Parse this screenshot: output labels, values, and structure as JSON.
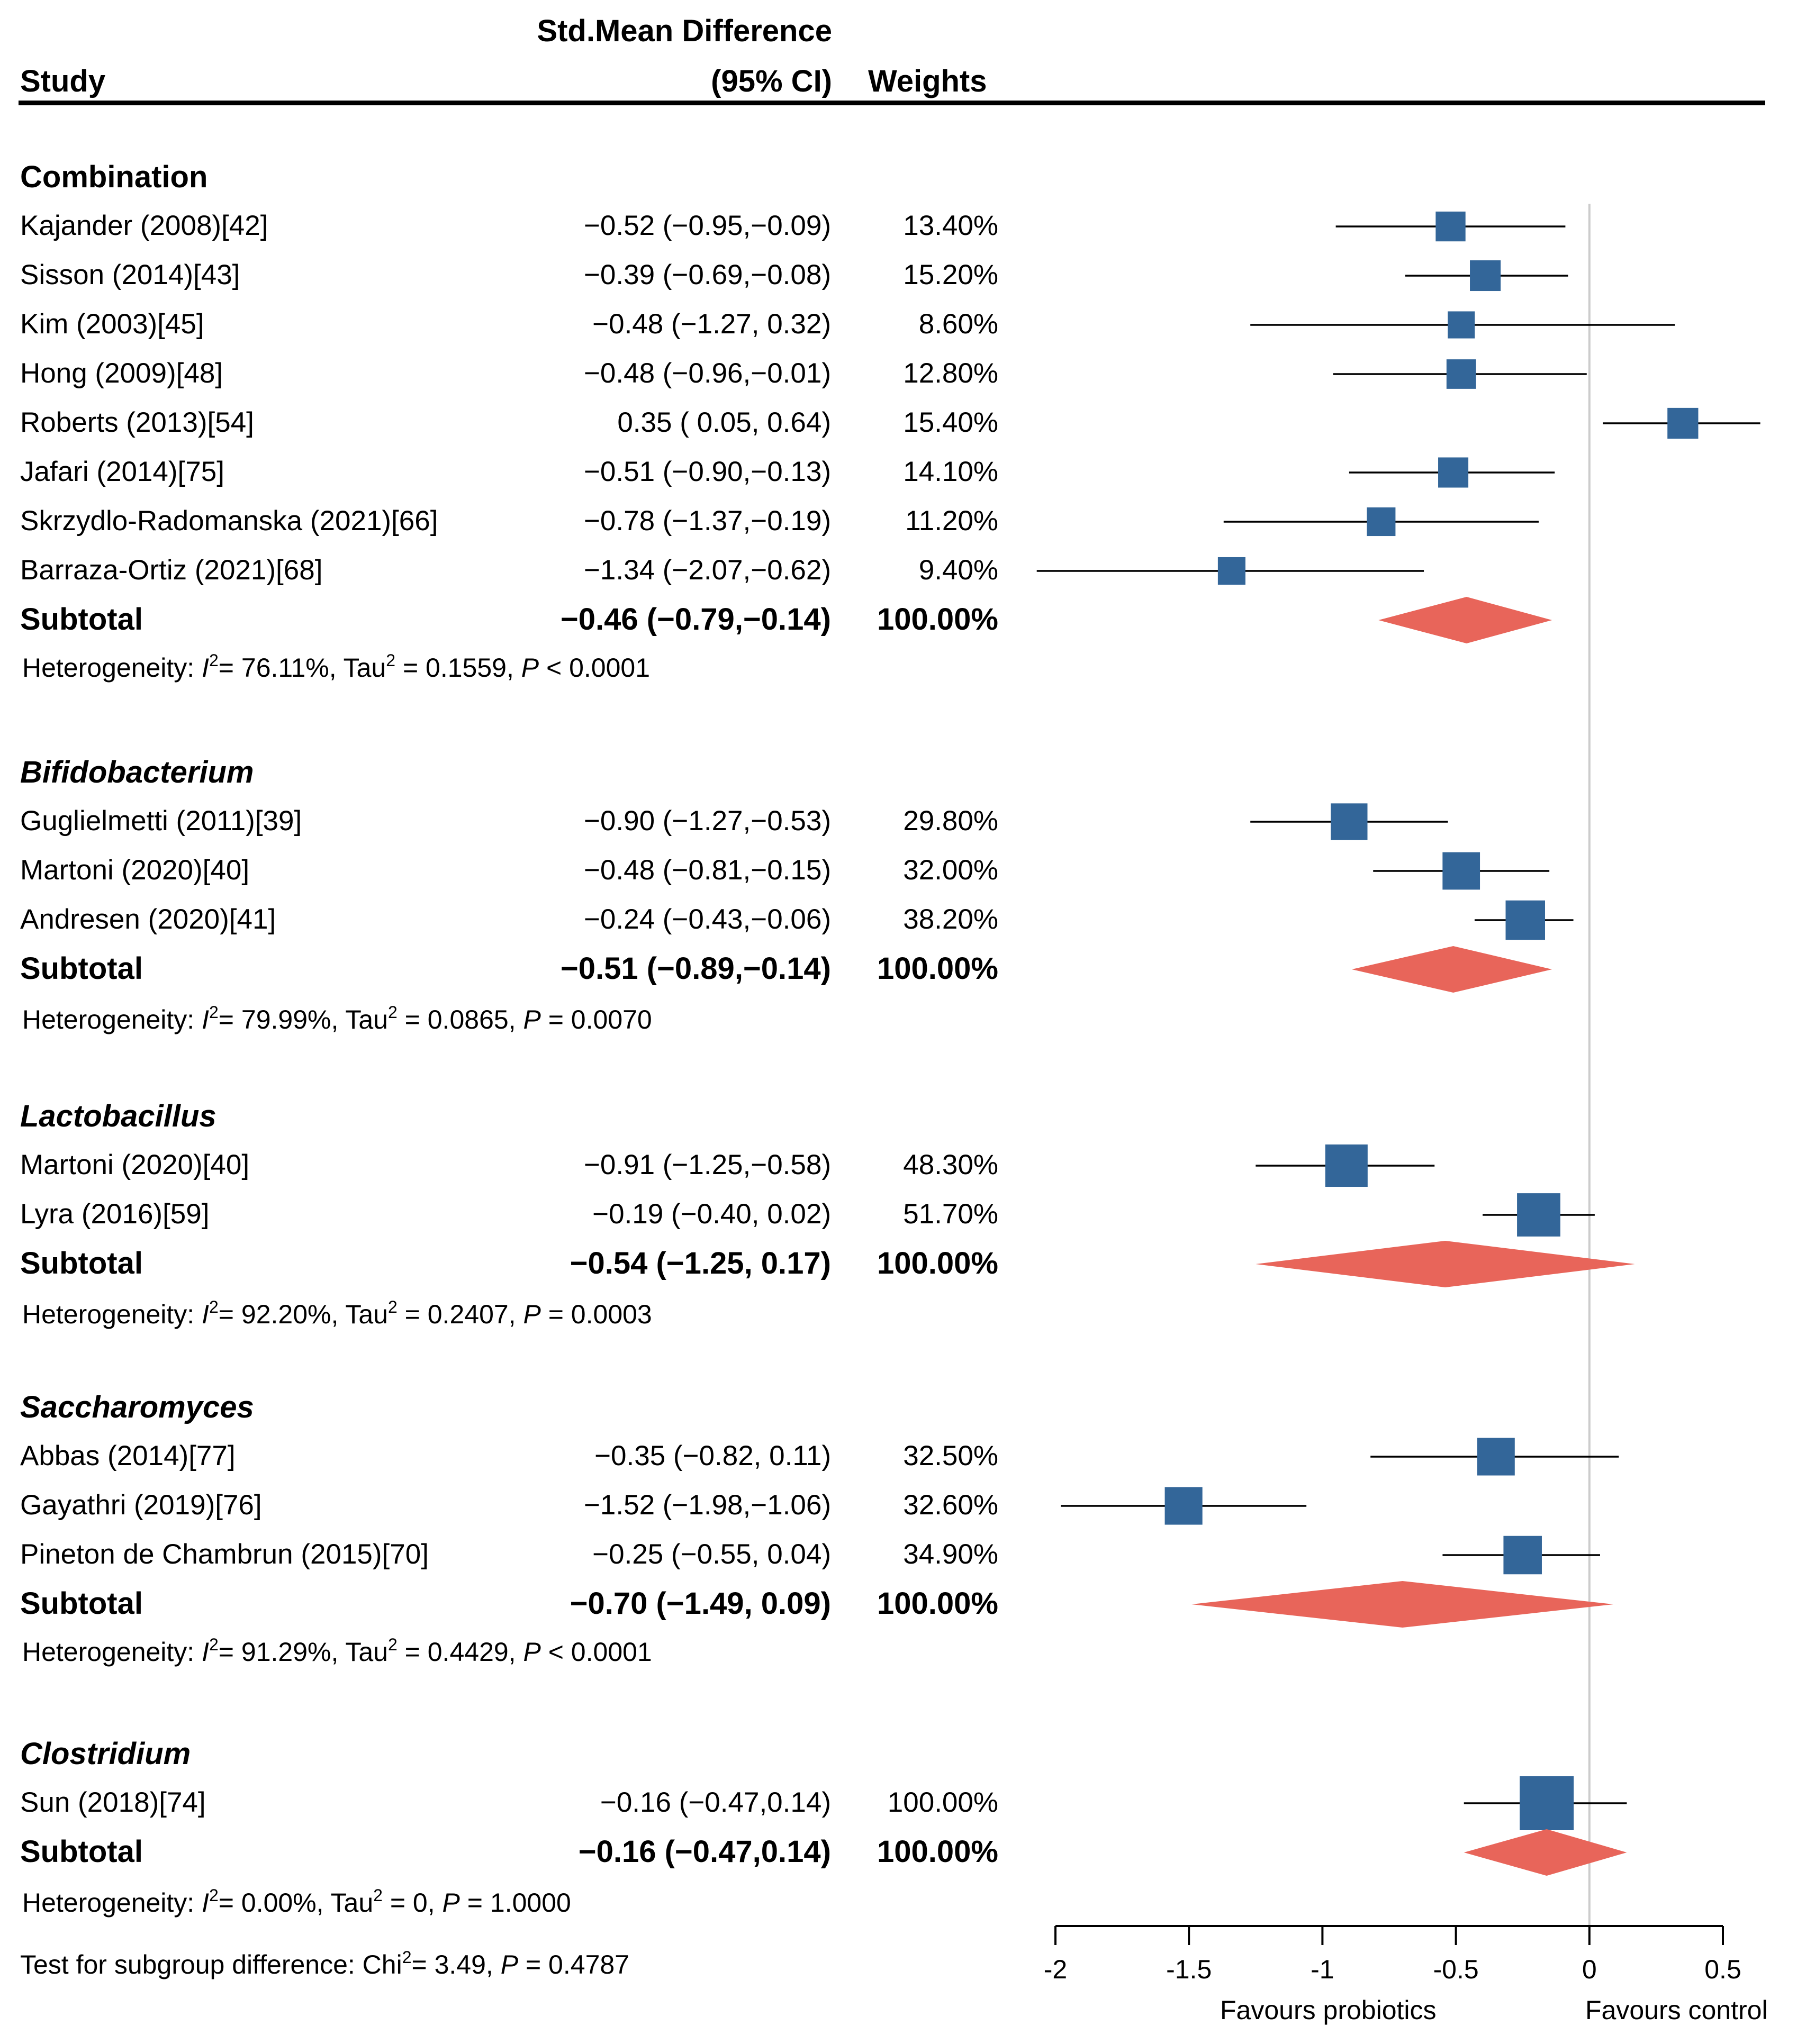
{
  "header": {
    "col_study": "Study",
    "col_smd_line1": "Std.Mean Difference",
    "col_smd_line2": "(95% CI)",
    "col_weights": "Weights"
  },
  "groups": [
    {
      "name": "Combination",
      "italic": false,
      "studies": [
        {
          "label": "Kajander (2008)[42]",
          "ci_text": "−0.52 (−0.95,−0.09)",
          "weight": "13.40%",
          "est": -0.52,
          "lo": -0.95,
          "hi": -0.09,
          "w": 13.4
        },
        {
          "label": "Sisson (2014)[43]",
          "ci_text": "−0.39 (−0.69,−0.08)",
          "weight": "15.20%",
          "est": -0.39,
          "lo": -0.69,
          "hi": -0.08,
          "w": 15.2
        },
        {
          "label": "Kim (2003)[45]",
          "ci_text": "−0.48 (−1.27, 0.32)",
          "weight": "8.60%",
          "est": -0.48,
          "lo": -1.27,
          "hi": 0.32,
          "w": 8.6
        },
        {
          "label": "Hong (2009)[48]",
          "ci_text": "−0.48 (−0.96,−0.01)",
          "weight": "12.80%",
          "est": -0.48,
          "lo": -0.96,
          "hi": -0.01,
          "w": 12.8
        },
        {
          "label": "Roberts (2013)[54]",
          "ci_text": "0.35 ( 0.05, 0.64)",
          "weight": "15.40%",
          "est": 0.35,
          "lo": 0.05,
          "hi": 0.64,
          "w": 15.4
        },
        {
          "label": "Jafari (2014)[75]",
          "ci_text": "−0.51 (−0.90,−0.13)",
          "weight": "14.10%",
          "est": -0.51,
          "lo": -0.9,
          "hi": -0.13,
          "w": 14.1
        },
        {
          "label": "Skrzydlo-Radomanska (2021)[66]",
          "ci_text": "−0.78 (−1.37,−0.19)",
          "weight": "11.20%",
          "est": -0.78,
          "lo": -1.37,
          "hi": -0.19,
          "w": 11.2
        },
        {
          "label": "Barraza-Ortiz (2021)[68]",
          "ci_text": "−1.34 (−2.07,−0.62)",
          "weight": "9.40%",
          "est": -1.34,
          "lo": -2.07,
          "hi": -0.62,
          "w": 9.4
        }
      ],
      "subtotal": {
        "label": "Subtotal",
        "ci_text": "−0.46 (−0.79,−0.14)",
        "weight": "100.00%",
        "est": -0.46,
        "lo": -0.79,
        "hi": -0.14
      },
      "het": {
        "prefix": "Heterogeneity: ",
        "i2_sym": "I",
        "i2_val": "= 76.11%, Tau",
        "tau_val": " = 0.1559, ",
        "p_sym": "P",
        "p_val": " < 0.0001"
      }
    },
    {
      "name": "Bifidobacterium",
      "italic": true,
      "studies": [
        {
          "label": "Guglielmetti (2011)[39]",
          "ci_text": "−0.90 (−1.27,−0.53)",
          "weight": "29.80%",
          "est": -0.9,
          "lo": -1.27,
          "hi": -0.53,
          "w": 29.8
        },
        {
          "label": "Martoni (2020)[40]",
          "ci_text": "−0.48 (−0.81,−0.15)",
          "weight": "32.00%",
          "est": -0.48,
          "lo": -0.81,
          "hi": -0.15,
          "w": 32.0
        },
        {
          "label": "Andresen (2020)[41]",
          "ci_text": "−0.24 (−0.43,−0.06)",
          "weight": "38.20%",
          "est": -0.24,
          "lo": -0.43,
          "hi": -0.06,
          "w": 38.2
        }
      ],
      "subtotal": {
        "label": "Subtotal",
        "ci_text": "−0.51 (−0.89,−0.14)",
        "weight": "100.00%",
        "est": -0.51,
        "lo": -0.89,
        "hi": -0.14
      },
      "het": {
        "prefix": "Heterogeneity: ",
        "i2_sym": "I",
        "i2_val": "= 79.99%, Tau",
        "tau_val": " = 0.0865, ",
        "p_sym": "P",
        "p_val": " = 0.0070"
      }
    },
    {
      "name": "Lactobacillus",
      "italic": true,
      "studies": [
        {
          "label": "Martoni (2020)[40]",
          "ci_text": "−0.91 (−1.25,−0.58)",
          "weight": "48.30%",
          "est": -0.91,
          "lo": -1.25,
          "hi": -0.58,
          "w": 48.3
        },
        {
          "label": "Lyra (2016)[59]",
          "ci_text": "−0.19 (−0.40, 0.02)",
          "weight": "51.70%",
          "est": -0.19,
          "lo": -0.4,
          "hi": 0.02,
          "w": 51.7
        }
      ],
      "subtotal": {
        "label": "Subtotal",
        "ci_text": "−0.54 (−1.25, 0.17)",
        "weight": "100.00%",
        "est": -0.54,
        "lo": -1.25,
        "hi": 0.17
      },
      "het": {
        "prefix": "Heterogeneity: ",
        "i2_sym": "I",
        "i2_val": "= 92.20%, Tau",
        "tau_val": " = 0.2407, ",
        "p_sym": "P",
        "p_val": " = 0.0003"
      }
    },
    {
      "name": "Saccharomyces",
      "italic": true,
      "studies": [
        {
          "label": "Abbas (2014)[77]",
          "ci_text": "−0.35 (−0.82, 0.11)",
          "weight": "32.50%",
          "est": -0.35,
          "lo": -0.82,
          "hi": 0.11,
          "w": 32.5
        },
        {
          "label": "Gayathri (2019)[76]",
          "ci_text": "−1.52 (−1.98,−1.06)",
          "weight": "32.60%",
          "est": -1.52,
          "lo": -1.98,
          "hi": -1.06,
          "w": 32.6
        },
        {
          "label": "Pineton de Chambrun (2015)[70]",
          "ci_text": "−0.25 (−0.55, 0.04)",
          "weight": "34.90%",
          "est": -0.25,
          "lo": -0.55,
          "hi": 0.04,
          "w": 34.9
        }
      ],
      "subtotal": {
        "label": "Subtotal",
        "ci_text": "−0.70 (−1.49, 0.09)",
        "weight": "100.00%",
        "est": -0.7,
        "lo": -1.49,
        "hi": 0.09
      },
      "het": {
        "prefix": "Heterogeneity: ",
        "i2_sym": "I",
        "i2_val": "= 91.29%, Tau",
        "tau_val": " = 0.4429, ",
        "p_sym": "P",
        "p_val": " < 0.0001"
      }
    },
    {
      "name": "Clostridium",
      "italic": true,
      "studies": [
        {
          "label": "Sun (2018)[74]",
          "ci_text": "−0.16 (−0.47,0.14)",
          "weight": "100.00%",
          "est": -0.16,
          "lo": -0.47,
          "hi": 0.14,
          "w": 100.0
        }
      ],
      "subtotal": {
        "label": "Subtotal",
        "ci_text": "−0.16 (−0.47,0.14)",
        "weight": "100.00%",
        "est": -0.16,
        "lo": -0.47,
        "hi": 0.14
      },
      "het": {
        "prefix": "Heterogeneity: ",
        "i2_sym": "I",
        "i2_val": "= 0.00%, Tau",
        "tau_val": " = 0, ",
        "p_sym": "P",
        "p_val": " = 1.0000"
      }
    }
  ],
  "test": {
    "prefix": "Test for subgroup difference: Chi",
    "chi_val": "= 3.49, ",
    "p_sym": "P",
    "p_val": " = 0.4787"
  },
  "chart_data": {
    "type": "forest",
    "x_ticks": [
      -2,
      -1.5,
      -1,
      -0.5,
      0,
      0.5
    ],
    "x_tick_labels": [
      "-2",
      "-1.5",
      "-1",
      "-0.5",
      "0",
      "0.5"
    ],
    "xlim": [
      -2,
      0.5
    ],
    "null_line": 0,
    "left_note": "Favours probiotics",
    "right_note": "Favours control",
    "square_color": "#336699",
    "diamond_color": "#e8655a",
    "null_line_color": "#cccccc"
  }
}
